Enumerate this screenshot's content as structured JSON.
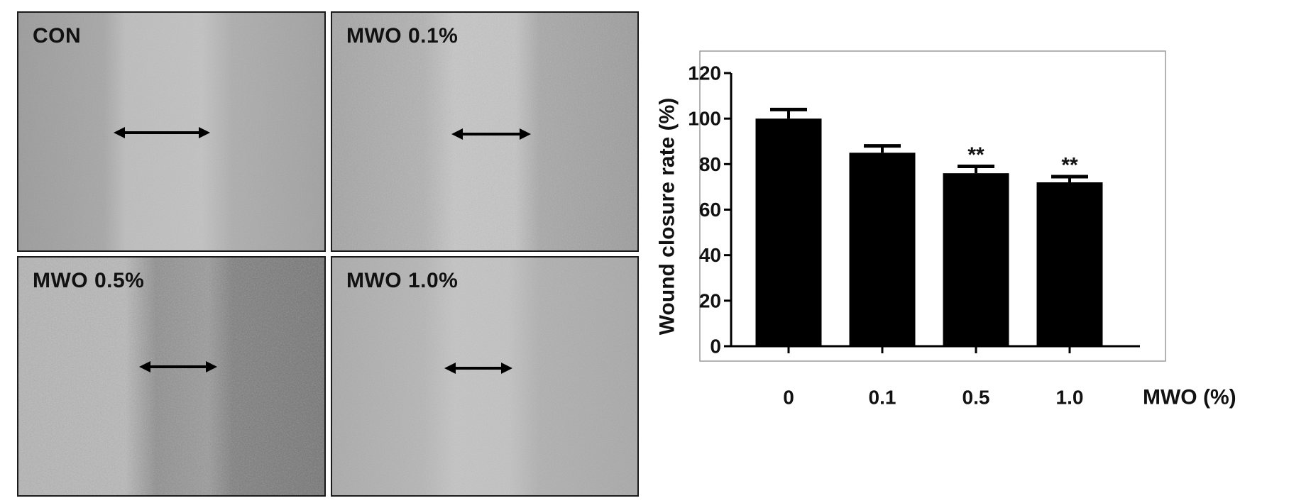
{
  "images": {
    "panels": [
      {
        "label": "CON"
      },
      {
        "label": "MWO 0.1%"
      },
      {
        "label": "MWO 0.5%"
      },
      {
        "label": "MWO 1.0%"
      }
    ]
  },
  "chart_data": {
    "type": "bar",
    "categories": [
      "0",
      "0.1",
      "0.5",
      "1.0"
    ],
    "values": [
      100,
      85,
      76,
      72
    ],
    "error_bars": [
      4,
      3,
      3,
      2.5
    ],
    "annotations": [
      "",
      "",
      "**",
      "**"
    ],
    "ylabel": "Wound closure rate (%)",
    "xlabel": "MWO (%)",
    "ylim": [
      0,
      120
    ],
    "yticks": [
      0,
      20,
      40,
      60,
      80,
      100,
      120
    ],
    "bar_color": "#000000",
    "grid": false
  }
}
